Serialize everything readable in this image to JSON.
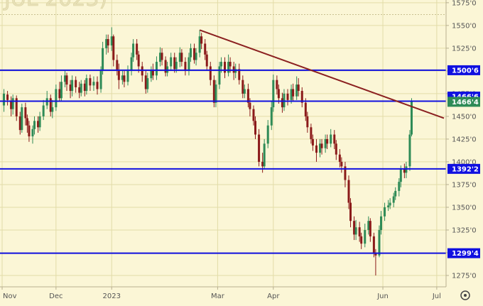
{
  "chart_data": {
    "type": "candlestick",
    "title_watermark": "JUL 2023)",
    "colors": {
      "background": "#fbf6d6",
      "grid": "#e2dca8",
      "up": "#2e8b57",
      "down": "#8b1a1a",
      "hline": "#1010e0",
      "trendline": "#8b2020",
      "current_badge": "#2e8b57",
      "label_bg": "#1010e0"
    },
    "y_axis": {
      "min": 1262.5,
      "max": 1578,
      "ticks": [
        1275.0,
        1300.0,
        1325.0,
        1350.0,
        1375.0,
        1400.0,
        1425.0,
        1450.0,
        1475.0,
        1500.0,
        1525.0,
        1550.0,
        1575.0
      ],
      "tick_labels": [
        "1275'0",
        "1300'0",
        "1325'0",
        "1350'0",
        "1375'0",
        "1400'0",
        "1425'0",
        "1450'0",
        "1475'0",
        "1500'0",
        "1525'0",
        "1550'0",
        "1575'0"
      ]
    },
    "x_axis": {
      "labels": [
        "Nov",
        "Dec",
        "2023",
        "Mar",
        "Apr",
        "Jun",
        "Jul"
      ],
      "label_days": [
        0,
        30,
        61,
        120,
        151,
        212,
        242
      ],
      "first_date": "2022-11-01",
      "last_day": 246
    },
    "horizontal_levels": [
      {
        "value": 1500.75,
        "label": "1500'6"
      },
      {
        "value": 1466.75,
        "label": "1466'6"
      },
      {
        "value": 1392.25,
        "label": "1392'2"
      },
      {
        "value": 1299.5,
        "label": "1299'4"
      }
    ],
    "current_price": {
      "value": 1466.5,
      "label": "1466'4"
    },
    "trendline": {
      "start": {
        "day": 110,
        "value": 1545
      },
      "end": {
        "day": 246,
        "value": 1448
      }
    },
    "candles": [
      [
        1,
        1462,
        1475,
        1480,
        1455
      ],
      [
        3,
        1474,
        1468,
        1478,
        1462
      ],
      [
        5,
        1467,
        1458,
        1472,
        1450
      ],
      [
        6,
        1458,
        1470,
        1474,
        1452
      ],
      [
        8,
        1470,
        1450,
        1473,
        1445
      ],
      [
        10,
        1450,
        1435,
        1455,
        1430
      ],
      [
        11,
        1435,
        1460,
        1464,
        1432
      ],
      [
        13,
        1460,
        1448,
        1465,
        1440
      ],
      [
        14,
        1448,
        1440,
        1452,
        1432
      ],
      [
        15,
        1440,
        1428,
        1445,
        1422
      ],
      [
        17,
        1428,
        1436,
        1440,
        1420
      ],
      [
        18,
        1436,
        1445,
        1450,
        1430
      ],
      [
        20,
        1445,
        1438,
        1450,
        1432
      ],
      [
        21,
        1438,
        1450,
        1455,
        1434
      ],
      [
        23,
        1450,
        1462,
        1468,
        1446
      ],
      [
        25,
        1462,
        1470,
        1478,
        1458
      ],
      [
        27,
        1470,
        1455,
        1474,
        1450
      ],
      [
        28,
        1455,
        1460,
        1468,
        1448
      ],
      [
        30,
        1460,
        1480,
        1485,
        1456
      ],
      [
        32,
        1480,
        1470,
        1488,
        1466
      ],
      [
        33,
        1470,
        1488,
        1495,
        1466
      ],
      [
        35,
        1488,
        1495,
        1500,
        1482
      ],
      [
        36,
        1495,
        1485,
        1498,
        1478
      ],
      [
        38,
        1485,
        1478,
        1490,
        1470
      ],
      [
        39,
        1478,
        1490,
        1495,
        1472
      ],
      [
        41,
        1490,
        1482,
        1494,
        1476
      ],
      [
        43,
        1482,
        1476,
        1488,
        1470
      ],
      [
        44,
        1476,
        1486,
        1490,
        1472
      ],
      [
        46,
        1486,
        1478,
        1490,
        1472
      ],
      [
        47,
        1478,
        1492,
        1496,
        1474
      ],
      [
        49,
        1492,
        1484,
        1496,
        1478
      ],
      [
        51,
        1484,
        1488,
        1494,
        1478
      ],
      [
        53,
        1488,
        1480,
        1494,
        1474
      ],
      [
        55,
        1480,
        1500,
        1505,
        1476
      ],
      [
        56,
        1500,
        1525,
        1532,
        1496
      ],
      [
        58,
        1525,
        1535,
        1540,
        1518
      ],
      [
        59,
        1535,
        1528,
        1540,
        1520
      ],
      [
        61,
        1528,
        1538,
        1548,
        1522
      ],
      [
        62,
        1538,
        1512,
        1540,
        1505
      ],
      [
        64,
        1512,
        1500,
        1518,
        1495
      ],
      [
        65,
        1500,
        1490,
        1508,
        1480
      ],
      [
        67,
        1490,
        1495,
        1500,
        1485
      ],
      [
        68,
        1495,
        1488,
        1500,
        1482
      ],
      [
        70,
        1488,
        1500,
        1506,
        1484
      ],
      [
        72,
        1500,
        1515,
        1520,
        1495
      ],
      [
        73,
        1515,
        1530,
        1535,
        1510
      ],
      [
        75,
        1530,
        1518,
        1535,
        1512
      ],
      [
        76,
        1518,
        1505,
        1522,
        1498
      ],
      [
        78,
        1505,
        1495,
        1510,
        1488
      ],
      [
        80,
        1495,
        1480,
        1500,
        1475
      ],
      [
        81,
        1480,
        1492,
        1498,
        1476
      ],
      [
        83,
        1492,
        1500,
        1505,
        1488
      ],
      [
        84,
        1500,
        1495,
        1508,
        1490
      ],
      [
        86,
        1495,
        1510,
        1516,
        1490
      ],
      [
        88,
        1510,
        1520,
        1526,
        1505
      ],
      [
        89,
        1520,
        1512,
        1525,
        1506
      ],
      [
        91,
        1512,
        1498,
        1516,
        1494
      ],
      [
        92,
        1498,
        1505,
        1510,
        1494
      ],
      [
        94,
        1505,
        1515,
        1520,
        1500
      ],
      [
        96,
        1515,
        1502,
        1520,
        1498
      ],
      [
        97,
        1502,
        1510,
        1515,
        1498
      ],
      [
        99,
        1510,
        1520,
        1526,
        1504
      ],
      [
        100,
        1520,
        1510,
        1524,
        1505
      ],
      [
        102,
        1510,
        1500,
        1515,
        1495
      ],
      [
        104,
        1500,
        1515,
        1520,
        1495
      ],
      [
        105,
        1515,
        1525,
        1530,
        1510
      ],
      [
        107,
        1525,
        1512,
        1530,
        1508
      ],
      [
        108,
        1512,
        1520,
        1525,
        1506
      ],
      [
        110,
        1520,
        1538,
        1545,
        1515
      ],
      [
        111,
        1538,
        1530,
        1542,
        1524
      ],
      [
        113,
        1530,
        1518,
        1535,
        1512
      ],
      [
        114,
        1518,
        1505,
        1522,
        1500
      ],
      [
        116,
        1505,
        1490,
        1510,
        1484
      ],
      [
        118,
        1490,
        1465,
        1495,
        1460
      ],
      [
        119,
        1465,
        1485,
        1490,
        1460
      ],
      [
        121,
        1485,
        1505,
        1510,
        1480
      ],
      [
        122,
        1505,
        1510,
        1515,
        1498
      ],
      [
        124,
        1510,
        1498,
        1515,
        1492
      ],
      [
        126,
        1498,
        1510,
        1518,
        1494
      ],
      [
        127,
        1510,
        1505,
        1515,
        1498
      ],
      [
        129,
        1505,
        1498,
        1510,
        1490
      ],
      [
        130,
        1498,
        1502,
        1508,
        1492
      ],
      [
        132,
        1502,
        1490,
        1508,
        1485
      ],
      [
        134,
        1490,
        1475,
        1495,
        1470
      ],
      [
        135,
        1475,
        1480,
        1485,
        1470
      ],
      [
        137,
        1480,
        1465,
        1486,
        1460
      ],
      [
        138,
        1465,
        1458,
        1470,
        1450
      ],
      [
        140,
        1458,
        1445,
        1462,
        1440
      ],
      [
        141,
        1445,
        1430,
        1450,
        1425
      ],
      [
        143,
        1430,
        1400,
        1436,
        1395
      ],
      [
        145,
        1400,
        1395,
        1410,
        1388
      ],
      [
        146,
        1395,
        1420,
        1425,
        1392
      ],
      [
        148,
        1420,
        1440,
        1446,
        1415
      ],
      [
        150,
        1440,
        1460,
        1466,
        1435
      ],
      [
        151,
        1460,
        1490,
        1496,
        1455
      ],
      [
        153,
        1490,
        1480,
        1495,
        1474
      ],
      [
        154,
        1480,
        1470,
        1485,
        1464
      ],
      [
        156,
        1470,
        1460,
        1476,
        1454
      ],
      [
        157,
        1460,
        1475,
        1480,
        1456
      ],
      [
        159,
        1475,
        1468,
        1480,
        1462
      ],
      [
        161,
        1468,
        1480,
        1485,
        1464
      ],
      [
        162,
        1480,
        1472,
        1486,
        1466
      ],
      [
        164,
        1472,
        1485,
        1494,
        1468
      ],
      [
        165,
        1485,
        1478,
        1492,
        1472
      ],
      [
        167,
        1478,
        1465,
        1482,
        1460
      ],
      [
        169,
        1465,
        1450,
        1470,
        1445
      ],
      [
        170,
        1450,
        1438,
        1455,
        1432
      ],
      [
        172,
        1438,
        1425,
        1442,
        1420
      ],
      [
        173,
        1425,
        1418,
        1430,
        1412
      ],
      [
        175,
        1418,
        1410,
        1425,
        1400
      ],
      [
        177,
        1410,
        1420,
        1425,
        1405
      ],
      [
        178,
        1420,
        1415,
        1425,
        1408
      ],
      [
        180,
        1415,
        1425,
        1430,
        1410
      ],
      [
        181,
        1425,
        1420,
        1430,
        1414
      ],
      [
        183,
        1420,
        1430,
        1436,
        1416
      ],
      [
        185,
        1430,
        1420,
        1435,
        1414
      ],
      [
        186,
        1420,
        1408,
        1424,
        1402
      ],
      [
        188,
        1408,
        1400,
        1414,
        1394
      ],
      [
        189,
        1400,
        1395,
        1405,
        1388
      ],
      [
        191,
        1395,
        1380,
        1400,
        1372
      ],
      [
        193,
        1380,
        1355,
        1385,
        1348
      ],
      [
        194,
        1355,
        1335,
        1360,
        1328
      ],
      [
        196,
        1335,
        1320,
        1340,
        1314
      ],
      [
        197,
        1320,
        1328,
        1336,
        1314
      ],
      [
        199,
        1328,
        1318,
        1334,
        1312
      ],
      [
        200,
        1318,
        1310,
        1322,
        1304
      ],
      [
        202,
        1310,
        1325,
        1332,
        1306
      ],
      [
        204,
        1325,
        1335,
        1340,
        1320
      ],
      [
        205,
        1335,
        1318,
        1338,
        1312
      ],
      [
        207,
        1318,
        1300,
        1322,
        1295
      ],
      [
        208,
        1300,
        1297,
        1304,
        1275
      ],
      [
        210,
        1297,
        1325,
        1330,
        1295
      ],
      [
        211,
        1325,
        1340,
        1346,
        1320
      ],
      [
        213,
        1340,
        1350,
        1355,
        1335
      ],
      [
        215,
        1350,
        1352,
        1358,
        1346
      ],
      [
        216,
        1352,
        1355,
        1360,
        1348
      ],
      [
        218,
        1355,
        1362,
        1366,
        1350
      ],
      [
        219,
        1362,
        1368,
        1372,
        1358
      ],
      [
        221,
        1368,
        1378,
        1382,
        1362
      ],
      [
        222,
        1378,
        1392,
        1396,
        1372
      ],
      [
        224,
        1392,
        1388,
        1398,
        1382
      ],
      [
        225,
        1388,
        1395,
        1400,
        1382
      ],
      [
        227,
        1395,
        1430,
        1435,
        1390
      ],
      [
        228,
        1430,
        1466.5,
        1470,
        1428
      ]
    ]
  }
}
